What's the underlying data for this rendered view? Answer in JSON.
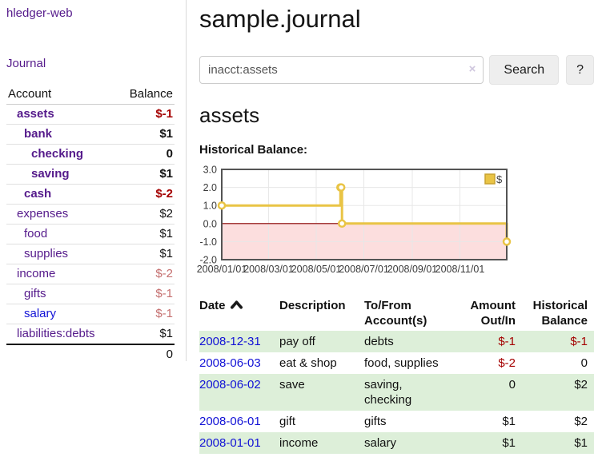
{
  "colors": {
    "link_purple": "#551a8b",
    "link_blue": "#1212d6",
    "negative_strong": "#a40000",
    "negative_light": "#c56f6f",
    "row_stripe_green": "#ddefd9",
    "button_bg": "#eeeeee",
    "chart_line": "#e9c445",
    "chart_negative_region": "#fcdede",
    "chart_zero_line": "#8b0000"
  },
  "sidebar": {
    "brand": "hledger-web",
    "nav": {
      "journal": "Journal"
    },
    "accounts_table": {
      "headers": [
        "Account",
        "Balance"
      ],
      "rows": [
        {
          "name": "assets",
          "depth": 1,
          "bold": true,
          "balance": "$-1",
          "balance_style": "neg-strong"
        },
        {
          "name": "bank",
          "depth": 2,
          "bold": true,
          "balance": "$1",
          "balance_style": "pos"
        },
        {
          "name": "checking",
          "depth": 3,
          "bold": true,
          "balance": "0",
          "balance_style": "pos"
        },
        {
          "name": "saving",
          "depth": 3,
          "bold": true,
          "balance": "$1",
          "balance_style": "pos"
        },
        {
          "name": "cash",
          "depth": 2,
          "bold": true,
          "balance": "$-2",
          "balance_style": "neg-strong"
        },
        {
          "name": "expenses",
          "depth": 1,
          "bold": false,
          "balance": "$2",
          "balance_style": "pos"
        },
        {
          "name": "food",
          "depth": 2,
          "bold": false,
          "balance": "$1",
          "balance_style": "pos"
        },
        {
          "name": "supplies",
          "depth": 2,
          "bold": false,
          "balance": "$1",
          "balance_style": "pos"
        },
        {
          "name": "income",
          "depth": 1,
          "bold": false,
          "balance": "$-2",
          "balance_style": "neg-light"
        },
        {
          "name": "gifts",
          "depth": 2,
          "bold": false,
          "balance": "$-1",
          "balance_style": "neg-light"
        },
        {
          "name": "salary",
          "depth": 2,
          "bold": false,
          "link_style": "unvisited",
          "balance": "$-1",
          "balance_style": "neg-light"
        },
        {
          "name": "liabilities:debts",
          "depth": 1,
          "bold": false,
          "balance": "$1",
          "balance_style": "pos"
        }
      ],
      "total": "0"
    }
  },
  "header": {
    "title": "sample.journal"
  },
  "search": {
    "value": "inacct:assets",
    "clear_icon": "×",
    "button_label": "Search",
    "help_label": "?"
  },
  "account_page": {
    "title": "assets",
    "chart_label": "Historical Balance:"
  },
  "chart_data": {
    "type": "line",
    "title": "Historical Balance",
    "step": true,
    "series": [
      {
        "name": "$",
        "points": [
          [
            "2008-01-01",
            1
          ],
          [
            "2008-06-01",
            2
          ],
          [
            "2008-06-02",
            2
          ],
          [
            "2008-06-03",
            0
          ],
          [
            "2008-12-31",
            -1
          ]
        ]
      }
    ],
    "x_range": [
      "2008-01-01",
      "2008-12-31"
    ],
    "x_ticks": [
      "2008/01/01",
      "2008/03/01",
      "2008/05/01",
      "2008/07/01",
      "2008/09/01",
      "2008/11/01"
    ],
    "y_ticks": [
      "3.0",
      "2.0",
      "1.0",
      "0.0",
      "-1.0",
      "-2.0"
    ],
    "ylim": [
      -2,
      3
    ],
    "grid": true,
    "legend": {
      "label": "$",
      "position": "top-right"
    }
  },
  "register_table": {
    "headers": [
      {
        "label": "Date",
        "sorted": "asc"
      },
      {
        "label": "Description"
      },
      {
        "label": "To/From Account(s)"
      },
      {
        "label": "Amount Out/In",
        "align": "right"
      },
      {
        "label": "Historical Balance",
        "align": "right"
      }
    ],
    "rows": [
      {
        "date": "2008-12-31",
        "description": "pay off",
        "accounts": "debts",
        "amount": "$-1",
        "amount_neg": true,
        "balance": "$-1",
        "balance_neg": true,
        "striped": true
      },
      {
        "date": "2008-06-03",
        "description": "eat & shop",
        "accounts": "food, supplies",
        "amount": "$-2",
        "amount_neg": true,
        "balance": "0",
        "balance_neg": false,
        "striped": false
      },
      {
        "date": "2008-06-02",
        "description": "save",
        "accounts": "saving, checking",
        "amount": "0",
        "amount_neg": false,
        "balance": "$2",
        "balance_neg": false,
        "striped": true
      },
      {
        "date": "2008-06-01",
        "description": "gift",
        "accounts": "gifts",
        "amount": "$1",
        "amount_neg": false,
        "balance": "$2",
        "balance_neg": false,
        "striped": false
      },
      {
        "date": "2008-01-01",
        "description": "income",
        "accounts": "salary",
        "amount": "$1",
        "amount_neg": false,
        "balance": "$1",
        "balance_neg": false,
        "striped": true
      }
    ]
  }
}
